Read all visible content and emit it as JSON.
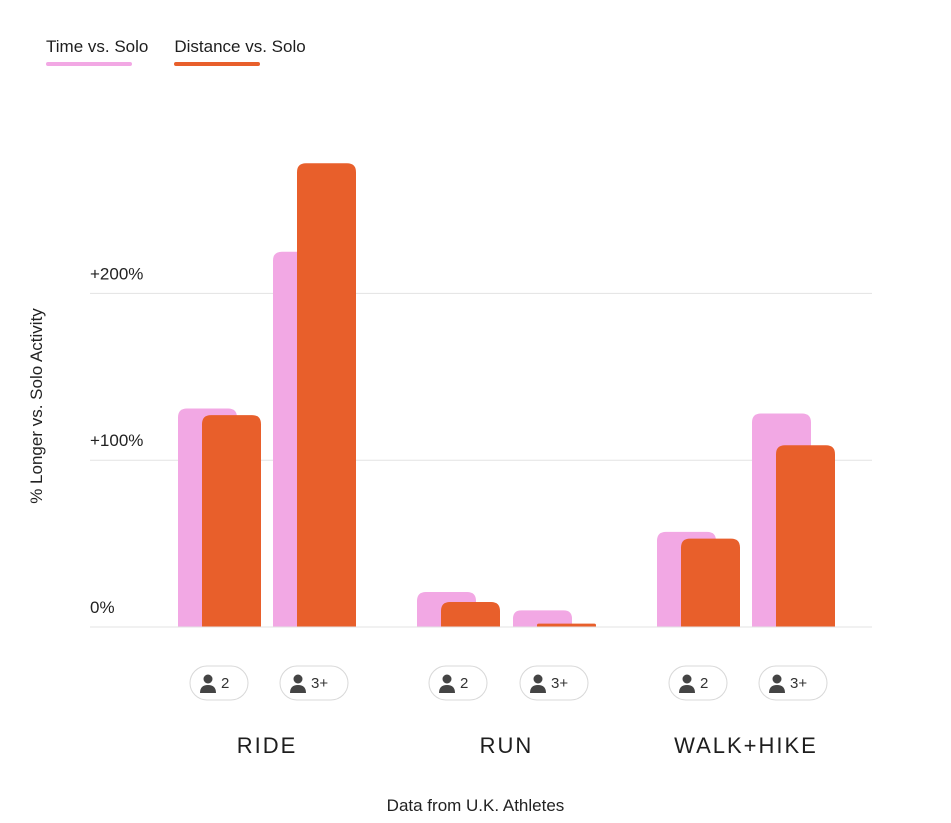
{
  "legend": {
    "time_label": "Time vs. Solo",
    "distance_label": "Distance vs. Solo"
  },
  "footnote": "Data from U.K. Athletes",
  "colors": {
    "time": "#F2A8E4",
    "distance": "#E85F2B",
    "grid": "#E3E3E3",
    "pill_border": "#D8D8D8",
    "person_icon": "#444444"
  },
  "chart_data": {
    "type": "bar",
    "ylabel": "% Longer vs. Solo Activity",
    "ylim": [
      0,
      260
    ],
    "yticks": [
      {
        "value": 0,
        "label": "0%"
      },
      {
        "value": 100,
        "label": "+100%"
      },
      {
        "value": 200,
        "label": "+200%"
      }
    ],
    "grid": true,
    "legend_position": "top-left",
    "categories": [
      "RIDE",
      "RUN",
      "WALK+HIKE"
    ],
    "group_size_labels": [
      "2",
      "3+"
    ],
    "group_icon": "person-icon",
    "series": [
      {
        "name": "Time vs. Solo",
        "values": [
          [
            131,
            225
          ],
          [
            21,
            10
          ],
          [
            57,
            128
          ]
        ]
      },
      {
        "name": "Distance vs. Solo",
        "values": [
          [
            127,
            278
          ],
          [
            15,
            2
          ],
          [
            53,
            109
          ]
        ]
      }
    ]
  }
}
